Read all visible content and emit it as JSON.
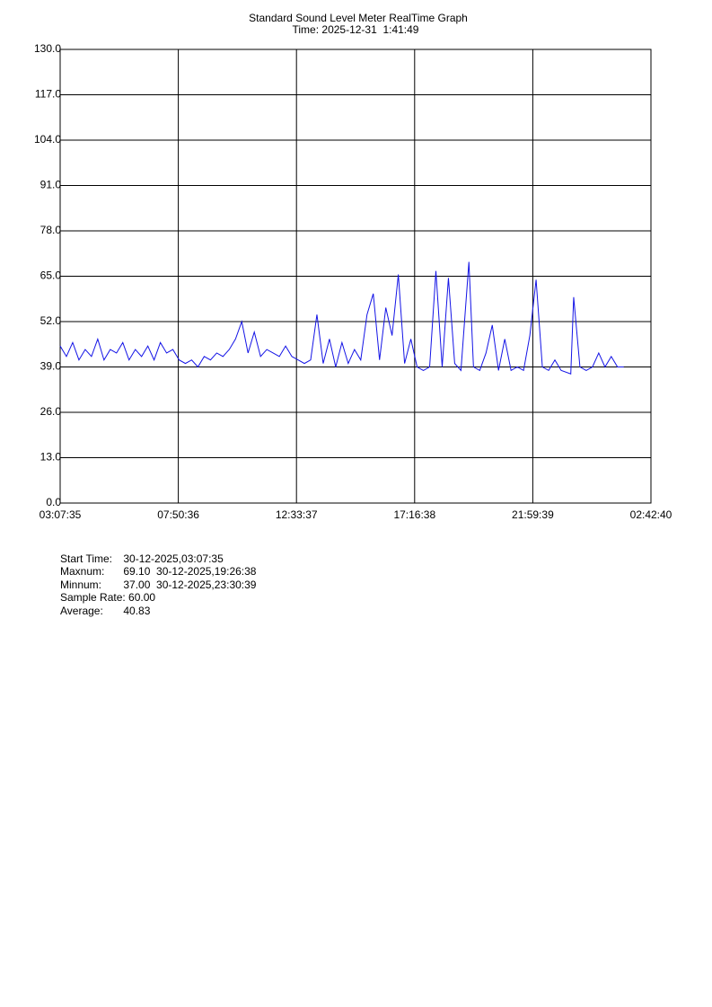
{
  "chart_data": {
    "type": "line",
    "title": "Standard Sound Level Meter RealTime Graph",
    "subtitle": "Time: 2025-12-31  1:41:49",
    "x": [
      "03:07:35",
      "03:22:35",
      "03:37:35",
      "03:52:35",
      "04:07:35",
      "04:22:35",
      "04:37:35",
      "04:52:35",
      "05:07:35",
      "05:22:35",
      "05:37:35",
      "05:52:35",
      "06:07:35",
      "06:22:35",
      "06:37:35",
      "06:52:35",
      "07:07:35",
      "07:22:35",
      "07:37:35",
      "07:52:35",
      "08:07:35",
      "08:22:35",
      "08:37:35",
      "08:52:35",
      "09:07:35",
      "09:22:35",
      "09:37:35",
      "09:52:35",
      "10:07:35",
      "10:22:35",
      "10:37:35",
      "10:52:35",
      "11:07:35",
      "11:22:35",
      "11:37:35",
      "11:52:35",
      "12:07:35",
      "12:22:35",
      "12:37:35",
      "12:52:35",
      "13:07:35",
      "13:22:35",
      "13:37:35",
      "13:52:35",
      "14:07:35",
      "14:22:35",
      "14:37:35",
      "14:52:35",
      "15:07:35",
      "15:22:35",
      "15:37:35",
      "15:52:35",
      "16:07:35",
      "16:22:35",
      "16:37:35",
      "16:52:35",
      "17:07:35",
      "17:22:35",
      "17:37:35",
      "17:52:35",
      "18:07:35",
      "18:22:35",
      "18:37:35",
      "18:52:35",
      "19:07:35",
      "19:26:38",
      "19:37:35",
      "19:52:35",
      "20:07:35",
      "20:22:35",
      "20:37:35",
      "20:52:35",
      "21:07:35",
      "21:22:35",
      "21:37:35",
      "21:52:35",
      "22:07:35",
      "22:22:35",
      "22:37:35",
      "22:52:35",
      "23:07:35",
      "23:30:39",
      "23:37:35",
      "23:52:35",
      "00:07:35",
      "00:22:35",
      "00:37:35",
      "00:52:35",
      "01:07:35",
      "01:22:35",
      "01:37:35"
    ],
    "values": [
      45,
      42,
      46,
      41,
      44,
      42,
      47,
      41,
      44,
      43,
      46,
      41,
      44,
      42,
      45,
      41,
      46,
      43,
      44,
      41,
      40,
      41,
      39,
      42,
      41,
      43,
      42,
      44,
      47,
      52,
      43,
      49,
      42,
      44,
      43,
      42,
      45,
      42,
      41,
      40,
      41,
      54,
      40,
      47,
      39,
      46,
      40,
      44,
      41,
      54,
      60,
      41,
      56,
      48,
      65.5,
      40,
      47,
      39,
      38,
      39,
      66.5,
      39,
      64.5,
      40,
      38,
      69.1,
      39,
      38,
      43,
      51,
      38,
      47,
      38,
      39,
      38,
      48,
      64,
      39,
      38,
      41,
      38,
      37,
      59,
      39,
      38,
      39,
      43,
      39,
      42,
      39,
      39
    ],
    "color": "#1414e6",
    "xlim": [
      "03:07:35",
      "02:42:40"
    ],
    "xticks": [
      "03:07:35",
      "07:50:36",
      "12:33:37",
      "17:16:38",
      "21:59:39",
      "02:42:40"
    ],
    "ylim": [
      0,
      130
    ],
    "yticks": [
      {
        "value": 0,
        "label": "0.0"
      },
      {
        "value": 13,
        "label": "13.0"
      },
      {
        "value": 26,
        "label": "26.0"
      },
      {
        "value": 39,
        "label": "39.0"
      },
      {
        "value": 52,
        "label": "52.0"
      },
      {
        "value": 65,
        "label": "65.0"
      },
      {
        "value": 78,
        "label": "78.0"
      },
      {
        "value": 91,
        "label": "91.0"
      },
      {
        "value": 104,
        "label": "104.0"
      },
      {
        "value": 117,
        "label": "117.0"
      },
      {
        "value": 130,
        "label": "130.0"
      }
    ],
    "grid": true
  },
  "info": [
    {
      "label": "Start Time:",
      "value": "30-12-2025,03:07:35"
    },
    {
      "label": "Maxnum:",
      "value": "69.10  30-12-2025,19:26:38"
    },
    {
      "label": "Minnum:",
      "value": "37.00  30-12-2025,23:30:39"
    },
    {
      "label": "Sample Rate:",
      "value": "60.00"
    },
    {
      "label": "Average:",
      "value": "40.83"
    }
  ]
}
